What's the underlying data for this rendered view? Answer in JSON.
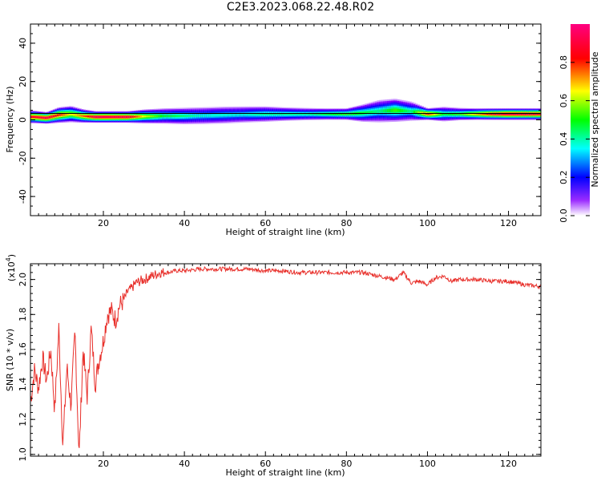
{
  "figure": {
    "title": "C2E3.2023.068.22.48.R02",
    "colors": {
      "snr_line": "#e8302b",
      "frame": "#000000",
      "center_line": "#000000"
    }
  },
  "chart_data": [
    {
      "type": "heatmap",
      "xlabel": "Height of straight line (km)",
      "ylabel": "Frequency (Hz)",
      "xlim": [
        2,
        128
      ],
      "ylim": [
        -50,
        50
      ],
      "x_ticks": [
        20,
        40,
        60,
        80,
        100,
        120
      ],
      "x_tick_labels": [
        "20",
        "40",
        "60",
        "80",
        "100",
        "120"
      ],
      "y_ticks": [
        -40,
        -20,
        0,
        20,
        40
      ],
      "y_tick_labels": [
        "-40",
        "-20",
        "0",
        "20",
        "40"
      ],
      "colorbar": {
        "label": "Normalized spectral amplitude",
        "range": [
          0,
          1
        ],
        "ticks": [
          0.0,
          0.2,
          0.4,
          0.6,
          0.8
        ],
        "tick_labels": [
          "0.0",
          "0.2",
          "0.4",
          "0.6",
          "0.8"
        ],
        "colors": [
          "#ffffff",
          "#7f00ff",
          "#0000ff",
          "#00ffff",
          "#00ff00",
          "#ffff00",
          "#ff0000",
          "#ff0080"
        ]
      },
      "spectrum_band": [
        {
          "x": 3,
          "f": 1.5,
          "w": 3.2,
          "a": 0.9
        },
        {
          "x": 6,
          "f": 1.0,
          "w": 3.0,
          "a": 0.95
        },
        {
          "x": 9,
          "f": 2.5,
          "w": 4.0,
          "a": 0.85
        },
        {
          "x": 12,
          "f": 3.0,
          "w": 4.2,
          "a": 0.7
        },
        {
          "x": 15,
          "f": 2.0,
          "w": 3.5,
          "a": 0.8
        },
        {
          "x": 18,
          "f": 1.5,
          "w": 3.0,
          "a": 0.95
        },
        {
          "x": 22,
          "f": 1.5,
          "w": 3.0,
          "a": 0.95
        },
        {
          "x": 26,
          "f": 1.5,
          "w": 3.0,
          "a": 0.95
        },
        {
          "x": 30,
          "f": 1.8,
          "w": 3.6,
          "a": 0.7
        },
        {
          "x": 35,
          "f": 2.0,
          "w": 4.0,
          "a": 0.55
        },
        {
          "x": 40,
          "f": 2.0,
          "w": 4.3,
          "a": 0.5
        },
        {
          "x": 45,
          "f": 2.2,
          "w": 4.4,
          "a": 0.45
        },
        {
          "x": 50,
          "f": 2.5,
          "w": 4.4,
          "a": 0.45
        },
        {
          "x": 55,
          "f": 2.8,
          "w": 4.2,
          "a": 0.45
        },
        {
          "x": 60,
          "f": 3.0,
          "w": 4.0,
          "a": 0.5
        },
        {
          "x": 65,
          "f": 3.0,
          "w": 3.5,
          "a": 0.5
        },
        {
          "x": 70,
          "f": 3.0,
          "w": 3.2,
          "a": 0.5
        },
        {
          "x": 75,
          "f": 3.0,
          "w": 3.0,
          "a": 0.55
        },
        {
          "x": 80,
          "f": 3.0,
          "w": 3.0,
          "a": 0.6
        },
        {
          "x": 84,
          "f": 3.5,
          "w": 4.5,
          "a": 0.55
        },
        {
          "x": 88,
          "f": 4.5,
          "w": 5.8,
          "a": 0.5
        },
        {
          "x": 92,
          "f": 5.0,
          "w": 6.0,
          "a": 0.6
        },
        {
          "x": 96,
          "f": 4.5,
          "w": 5.0,
          "a": 0.5
        },
        {
          "x": 100,
          "f": 3.0,
          "w": 3.0,
          "a": 0.85
        },
        {
          "x": 104,
          "f": 3.0,
          "w": 3.8,
          "a": 0.55
        },
        {
          "x": 108,
          "f": 3.0,
          "w": 3.2,
          "a": 0.6
        },
        {
          "x": 112,
          "f": 3.0,
          "w": 3.0,
          "a": 0.75
        },
        {
          "x": 116,
          "f": 3.0,
          "w": 3.0,
          "a": 0.9
        },
        {
          "x": 120,
          "f": 3.0,
          "w": 3.0,
          "a": 0.95
        },
        {
          "x": 124,
          "f": 3.0,
          "w": 3.0,
          "a": 0.95
        },
        {
          "x": 128,
          "f": 3.0,
          "w": 3.0,
          "a": 0.9
        }
      ]
    },
    {
      "type": "line",
      "xlabel": "Height of straight line (km)",
      "ylabel": "SNR (10 * v/v)",
      "scale_note": "(x10",
      "scale_exp": "4",
      "scale_close": ")",
      "xlim": [
        2,
        128
      ],
      "ylim": [
        0.99,
        2.09
      ],
      "x_ticks": [
        20,
        40,
        60,
        80,
        100,
        120
      ],
      "x_tick_labels": [
        "20",
        "40",
        "60",
        "80",
        "100",
        "120"
      ],
      "y_ticks": [
        1.0,
        1.2,
        1.4,
        1.6,
        1.8,
        2.0
      ],
      "y_tick_labels": [
        "1.0",
        "1.2",
        "1.4",
        "1.6",
        "1.8",
        "2.0"
      ],
      "series": [
        {
          "x": [
            2,
            3,
            4,
            5,
            6,
            7,
            8,
            9,
            10,
            11,
            12,
            13,
            14,
            15,
            16,
            17,
            18,
            19,
            20,
            21,
            22,
            23,
            24,
            25,
            26,
            27,
            28,
            30,
            32,
            34,
            36,
            38,
            40,
            44,
            48,
            52,
            56,
            60,
            64,
            68,
            72,
            76,
            80,
            84,
            88,
            92,
            94,
            96,
            98,
            100,
            102,
            104,
            106,
            108,
            112,
            116,
            120,
            124,
            128
          ],
          "y": [
            1.3,
            1.48,
            1.38,
            1.55,
            1.42,
            1.6,
            1.25,
            1.72,
            1.05,
            1.5,
            1.28,
            1.7,
            0.99,
            1.6,
            1.33,
            1.72,
            1.4,
            1.55,
            1.65,
            1.8,
            1.82,
            1.77,
            1.85,
            1.88,
            1.93,
            1.95,
            1.98,
            2.0,
            2.02,
            2.04,
            2.04,
            2.05,
            2.05,
            2.06,
            2.06,
            2.06,
            2.06,
            2.05,
            2.05,
            2.04,
            2.04,
            2.04,
            2.04,
            2.04,
            2.02,
            2.0,
            2.04,
            1.98,
            1.99,
            1.97,
            2.01,
            2.02,
            1.99,
            2.0,
            2.0,
            1.99,
            1.99,
            1.97,
            1.96
          ]
        }
      ]
    }
  ]
}
